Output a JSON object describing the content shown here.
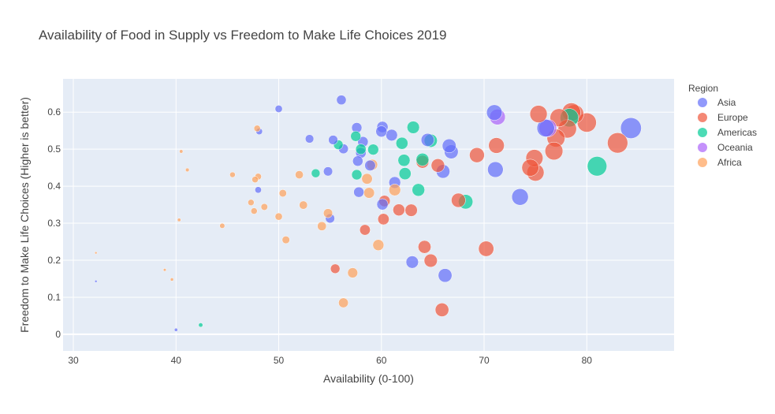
{
  "chart_data": {
    "type": "scatter",
    "title": "Availability of Food in Supply vs Freedom to Make Life Choices 2019",
    "xlabel": "Availability (0-100)",
    "ylabel": "Freedom to Make Life Choices (Higher is better)",
    "xlim": [
      29,
      88.5
    ],
    "ylim": [
      -0.045,
      0.69
    ],
    "xticks": [
      30,
      40,
      50,
      60,
      70,
      80
    ],
    "yticks": [
      0,
      0.1,
      0.2,
      0.3,
      0.4,
      0.5,
      0.6
    ],
    "grid": true,
    "legend": {
      "title": "Region",
      "placement": "right"
    },
    "size_encoding": "marker size grows with availability",
    "series": [
      {
        "name": "Asia",
        "color": "#636efa",
        "points": [
          [
            32.2,
            0.143
          ],
          [
            40.0,
            0.012
          ],
          [
            48.0,
            0.39
          ],
          [
            48.1,
            0.548
          ],
          [
            50.0,
            0.609
          ],
          [
            53.0,
            0.528
          ],
          [
            54.8,
            0.44
          ],
          [
            55.0,
            0.313
          ],
          [
            55.3,
            0.525
          ],
          [
            56.1,
            0.633
          ],
          [
            56.3,
            0.501
          ],
          [
            57.6,
            0.558
          ],
          [
            57.7,
            0.468
          ],
          [
            57.8,
            0.384
          ],
          [
            58.0,
            0.49
          ],
          [
            58.2,
            0.52
          ],
          [
            58.9,
            0.456
          ],
          [
            60.0,
            0.548
          ],
          [
            60.1,
            0.56
          ],
          [
            60.1,
            0.351
          ],
          [
            61.0,
            0.538
          ],
          [
            61.3,
            0.41
          ],
          [
            63.0,
            0.195
          ],
          [
            64.5,
            0.525
          ],
          [
            66.0,
            0.44
          ],
          [
            66.2,
            0.159
          ],
          [
            66.6,
            0.509
          ],
          [
            66.8,
            0.493
          ],
          [
            71.0,
            0.599
          ],
          [
            71.1,
            0.445
          ],
          [
            73.5,
            0.371
          ],
          [
            76.0,
            0.557
          ],
          [
            84.3,
            0.557
          ]
        ]
      },
      {
        "name": "Europe",
        "color": "#ef553b",
        "points": [
          [
            55.5,
            0.177
          ],
          [
            58.4,
            0.282
          ],
          [
            60.2,
            0.311
          ],
          [
            60.3,
            0.36
          ],
          [
            61.7,
            0.336
          ],
          [
            62.9,
            0.335
          ],
          [
            64.0,
            0.466
          ],
          [
            64.2,
            0.236
          ],
          [
            64.8,
            0.199
          ],
          [
            65.5,
            0.456
          ],
          [
            65.9,
            0.066
          ],
          [
            67.5,
            0.362
          ],
          [
            69.3,
            0.484
          ],
          [
            70.2,
            0.231
          ],
          [
            71.2,
            0.51
          ],
          [
            74.5,
            0.45
          ],
          [
            74.9,
            0.476
          ],
          [
            75.0,
            0.437
          ],
          [
            75.3,
            0.595
          ],
          [
            76.8,
            0.495
          ],
          [
            77.0,
            0.53
          ],
          [
            77.3,
            0.585
          ],
          [
            78.1,
            0.555
          ],
          [
            78.5,
            0.6
          ],
          [
            78.8,
            0.595
          ],
          [
            80.0,
            0.572
          ],
          [
            83.0,
            0.517
          ]
        ]
      },
      {
        "name": "Americas",
        "color": "#00cc96",
        "points": [
          [
            42.4,
            0.025
          ],
          [
            53.6,
            0.435
          ],
          [
            55.8,
            0.512
          ],
          [
            57.5,
            0.535
          ],
          [
            57.6,
            0.431
          ],
          [
            58.0,
            0.5
          ],
          [
            59.2,
            0.499
          ],
          [
            62.0,
            0.516
          ],
          [
            62.2,
            0.47
          ],
          [
            62.3,
            0.434
          ],
          [
            63.1,
            0.559
          ],
          [
            63.6,
            0.39
          ],
          [
            64.0,
            0.472
          ],
          [
            64.8,
            0.523
          ],
          [
            68.2,
            0.358
          ],
          [
            78.3,
            0.585
          ],
          [
            81.0,
            0.454
          ]
        ]
      },
      {
        "name": "Oceania",
        "color": "#ab63fa",
        "points": [
          [
            71.3,
            0.587
          ],
          [
            76.2,
            0.557
          ]
        ]
      },
      {
        "name": "Africa",
        "color": "#ffa15a",
        "points": [
          [
            32.2,
            0.22
          ],
          [
            38.9,
            0.174
          ],
          [
            39.6,
            0.148
          ],
          [
            40.3,
            0.309
          ],
          [
            40.5,
            0.494
          ],
          [
            41.1,
            0.444
          ],
          [
            44.5,
            0.293
          ],
          [
            45.5,
            0.431
          ],
          [
            47.3,
            0.356
          ],
          [
            47.6,
            0.333
          ],
          [
            47.7,
            0.418
          ],
          [
            47.9,
            0.556
          ],
          [
            48.0,
            0.426
          ],
          [
            48.6,
            0.344
          ],
          [
            50.0,
            0.318
          ],
          [
            50.4,
            0.381
          ],
          [
            50.7,
            0.255
          ],
          [
            52.0,
            0.431
          ],
          [
            52.4,
            0.349
          ],
          [
            54.2,
            0.292
          ],
          [
            54.8,
            0.327
          ],
          [
            56.3,
            0.085
          ],
          [
            57.2,
            0.166
          ],
          [
            58.6,
            0.42
          ],
          [
            58.8,
            0.382
          ],
          [
            59.1,
            0.458
          ],
          [
            59.7,
            0.241
          ],
          [
            61.3,
            0.39
          ]
        ]
      }
    ]
  }
}
